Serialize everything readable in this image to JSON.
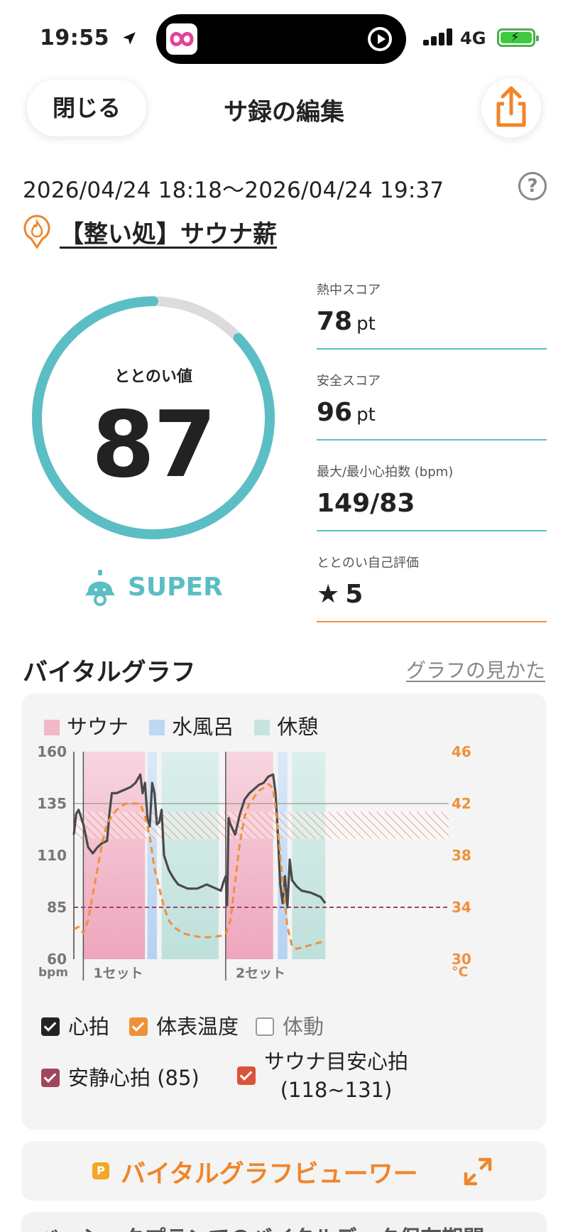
{
  "status_bar": {
    "time": "19:55",
    "network": "4G"
  },
  "nav": {
    "close_label": "閉じる",
    "title": "サ録の編集"
  },
  "session": {
    "datetime": "2026/04/24 18:18～2026/04/24 19:37",
    "facility": "【整い処】サウナ薪"
  },
  "score": {
    "label": "ととのい値",
    "value": "87",
    "fraction": 0.87,
    "rank": "SUPER"
  },
  "stats": [
    {
      "label": "熱中スコア",
      "value": "78",
      "unit": "pt"
    },
    {
      "label": "安全スコア",
      "value": "96",
      "unit": "pt"
    },
    {
      "label": "最大/最小心拍数 (bpm)",
      "value": "149/83",
      "unit": ""
    },
    {
      "label": "ととのい自己評価",
      "value": "5",
      "unit": ""
    }
  ],
  "vital": {
    "title": "バイタルグラフ",
    "help_link": "グラフの見かた",
    "legend": [
      {
        "label": "サウナ",
        "color": "#f2b8c8"
      },
      {
        "label": "水風呂",
        "color": "#bcd8f2"
      },
      {
        "label": "休憩",
        "color": "#c5e4e0"
      }
    ],
    "checks": [
      {
        "label": "心拍",
        "checked": true,
        "color": "#222222"
      },
      {
        "label": "体表温度",
        "checked": true,
        "color": "#f0913a"
      },
      {
        "label": "体動",
        "checked": false,
        "color": "#999999"
      },
      {
        "label": "安静心拍 (85)",
        "checked": true,
        "color": "#a0455e"
      },
      {
        "label": "サウナ目安心拍",
        "sub": "(118~131)",
        "checked": true,
        "color": "#d9543a"
      }
    ]
  },
  "chart_data": {
    "type": "line",
    "left_axis": {
      "label": "bpm",
      "ticks": [
        60,
        85,
        110,
        135,
        160
      ],
      "range": [
        60,
        160
      ]
    },
    "right_axis": {
      "label": "°C",
      "ticks": [
        30,
        34,
        38,
        42,
        46
      ],
      "range": [
        30,
        46
      ]
    },
    "x_labels": [
      "1セット",
      "2セット"
    ],
    "x_range": [
      0,
      79
    ],
    "phases": [
      {
        "type": "サウナ",
        "start": 2,
        "end": 15
      },
      {
        "type": "水風呂",
        "start": 15.5,
        "end": 17.5
      },
      {
        "type": "休憩",
        "start": 18.5,
        "end": 30.5
      },
      {
        "type": "サウナ",
        "start": 32,
        "end": 42
      },
      {
        "type": "水風呂",
        "start": 43,
        "end": 45
      },
      {
        "type": "休憩",
        "start": 46,
        "end": 53
      }
    ],
    "set_starts": [
      2,
      32
    ],
    "resting_hr": 85,
    "target_hr_range": [
      118,
      131
    ],
    "series": [
      {
        "name": "心拍",
        "axis": "left",
        "points": [
          [
            0,
            120
          ],
          [
            0.5,
            130
          ],
          [
            1,
            132
          ],
          [
            2,
            125
          ],
          [
            3,
            114
          ],
          [
            4,
            111
          ],
          [
            5,
            114
          ],
          [
            6,
            116
          ],
          [
            7,
            117
          ],
          [
            7.5,
            130
          ],
          [
            8,
            140
          ],
          [
            9,
            140
          ],
          [
            10,
            141
          ],
          [
            11,
            142
          ],
          [
            12,
            143
          ],
          [
            13,
            145
          ],
          [
            14,
            149
          ],
          [
            14.5,
            140
          ],
          [
            15,
            145
          ],
          [
            15.5,
            128
          ],
          [
            16,
            124
          ],
          [
            16.5,
            145
          ],
          [
            17,
            140
          ],
          [
            17.5,
            125
          ],
          [
            18,
            126
          ],
          [
            18.5,
            132
          ],
          [
            19,
            110
          ],
          [
            20,
            103
          ],
          [
            21,
            99
          ],
          [
            22,
            96
          ],
          [
            24,
            94
          ],
          [
            26,
            94
          ],
          [
            28,
            96
          ],
          [
            30,
            94
          ],
          [
            31,
            93
          ],
          [
            31.5,
            97
          ],
          [
            32,
            100
          ],
          [
            32.3,
            86
          ],
          [
            32.6,
            128
          ],
          [
            33,
            125
          ],
          [
            34,
            120
          ],
          [
            35,
            130
          ],
          [
            36,
            137
          ],
          [
            37,
            140
          ],
          [
            38,
            142
          ],
          [
            39,
            144
          ],
          [
            40,
            145
          ],
          [
            41,
            148
          ],
          [
            42,
            149
          ],
          [
            42.5,
            140
          ],
          [
            43,
            120
          ],
          [
            43.5,
            96
          ],
          [
            44,
            87
          ],
          [
            44.5,
            100
          ],
          [
            45,
            85
          ],
          [
            45.5,
            108
          ],
          [
            46,
            98
          ],
          [
            47,
            95
          ],
          [
            48,
            93
          ],
          [
            50,
            92
          ],
          [
            52,
            90
          ],
          [
            53,
            87
          ]
        ]
      },
      {
        "name": "体表温度",
        "axis": "right",
        "points": [
          [
            0,
            32.3
          ],
          [
            1,
            32.5
          ],
          [
            2,
            32
          ],
          [
            3,
            33
          ],
          [
            4,
            35
          ],
          [
            5,
            37
          ],
          [
            6,
            39
          ],
          [
            7,
            40.5
          ],
          [
            8,
            41
          ],
          [
            9,
            41.5
          ],
          [
            10,
            41.8
          ],
          [
            11,
            42
          ],
          [
            12,
            42
          ],
          [
            13,
            42
          ],
          [
            14,
            42
          ],
          [
            15,
            41
          ],
          [
            16,
            39.5
          ],
          [
            17,
            37
          ],
          [
            18,
            35.5
          ],
          [
            19,
            34
          ],
          [
            20,
            33
          ],
          [
            21,
            32.5
          ],
          [
            23,
            32
          ],
          [
            25,
            31.8
          ],
          [
            27,
            31.7
          ],
          [
            29,
            31.7
          ],
          [
            31,
            31.8
          ],
          [
            32,
            31.9
          ],
          [
            33,
            33
          ],
          [
            34,
            36
          ],
          [
            35,
            39
          ],
          [
            36,
            41
          ],
          [
            37,
            42
          ],
          [
            38,
            42.5
          ],
          [
            39,
            43
          ],
          [
            40,
            43.2
          ],
          [
            41,
            43.5
          ],
          [
            42,
            43.2
          ],
          [
            43,
            40
          ],
          [
            44,
            36
          ],
          [
            45,
            32.5
          ],
          [
            46,
            31
          ],
          [
            47,
            30.8
          ],
          [
            49,
            31
          ],
          [
            51,
            31.2
          ],
          [
            53,
            31.4
          ]
        ]
      }
    ]
  },
  "viewer_button": {
    "label": "バイタルグラフビューワー"
  },
  "bottom_banner": {
    "text": "ベーシックプランでのバイタルデータ保存期間"
  }
}
